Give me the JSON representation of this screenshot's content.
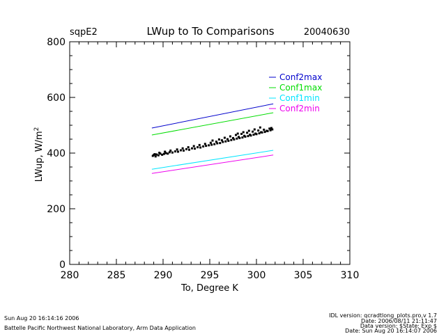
{
  "header": {
    "site": "sqpE2",
    "title": "LWup to To Comparisons",
    "date": "20040630"
  },
  "footer": {
    "left_line1": "Sun Aug 20 16:14:16 2006",
    "left_line2": "Battelle Pacific Northwest National Laboratory, Arm Data Application",
    "right_line1": "IDL version: qcradtlong_plots.pro,v 1.7",
    "right_line2": "Date: 2006/08/11 21:11:47",
    "right_line3": "Data version: $State: Exp $",
    "right_line4": "Date: Sun Aug 20 16:14:07 2006"
  },
  "colors": {
    "Conf2max": "#0000cc",
    "Conf1max": "#00dd00",
    "Conf1min": "#00e5ff",
    "Conf2min": "#ee00ee",
    "observed": "#000000"
  },
  "chart_data": {
    "type": "scatter",
    "xlabel": "To, Degree K",
    "ylabel": "LWup, W/m",
    "ylabel_sup": "2",
    "xlim": [
      280,
      310
    ],
    "ylim": [
      0,
      800
    ],
    "x_ticks": [
      280,
      285,
      290,
      295,
      300,
      305,
      310
    ],
    "y_ticks": [
      0,
      200,
      400,
      600,
      800
    ],
    "legend_position": "top-right",
    "series": [
      {
        "name": "Conf2max",
        "x": [
          288.8,
          301.8
        ],
        "y": [
          490,
          577
        ]
      },
      {
        "name": "Conf1max",
        "x": [
          288.8,
          301.8
        ],
        "y": [
          465,
          545
        ]
      },
      {
        "name": "Conf1min",
        "x": [
          288.8,
          301.8
        ],
        "y": [
          342,
          410
        ]
      },
      {
        "name": "Conf2min",
        "x": [
          288.8,
          301.8
        ],
        "y": [
          327,
          393
        ]
      }
    ],
    "scatter": {
      "x": [
        288.9,
        289.0,
        289.2,
        289.3,
        289.5,
        289.7,
        289.9,
        290.1,
        290.3,
        290.5,
        290.7,
        291.0,
        291.3,
        291.6,
        291.9,
        292.2,
        292.5,
        292.8,
        293.1,
        293.4,
        293.7,
        294.0,
        294.3,
        294.6,
        294.9,
        295.2,
        295.5,
        295.8,
        296.1,
        296.4,
        296.7,
        297.0,
        297.3,
        297.6,
        297.9,
        298.2,
        298.5,
        298.8,
        299.1,
        299.4,
        299.7,
        300.0,
        300.3,
        300.6,
        300.9,
        301.2,
        301.5,
        301.7,
        289.1,
        289.6,
        290.2,
        290.8,
        291.5,
        292.1,
        292.7,
        293.3,
        293.9,
        294.5,
        295.1,
        295.7,
        296.3,
        296.9,
        297.5,
        298.1,
        298.7,
        299.3,
        299.9,
        300.5,
        301.1,
        301.6,
        295.3,
        296.0,
        296.6,
        297.2,
        297.8,
        298.4,
        299.0,
        299.6,
        300.2,
        300.8,
        301.4,
        298.0,
        298.6,
        299.2,
        299.8,
        300.4
      ],
      "y": [
        390,
        393,
        388,
        395,
        392,
        398,
        394,
        397,
        400,
        398,
        403,
        402,
        406,
        405,
        410,
        409,
        414,
        412,
        417,
        416,
        421,
        420,
        424,
        426,
        428,
        430,
        432,
        435,
        436,
        440,
        442,
        444,
        447,
        449,
        452,
        454,
        456,
        459,
        461,
        463,
        466,
        468,
        471,
        474,
        476,
        479,
        482,
        485,
        396,
        401,
        405,
        409,
        413,
        417,
        421,
        425,
        429,
        433,
        437,
        441,
        446,
        450,
        454,
        458,
        462,
        466,
        470,
        475,
        480,
        490,
        445,
        449,
        455,
        460,
        465,
        469,
        473,
        477,
        481,
        484,
        488,
        470,
        475,
        480,
        485,
        492
      ]
    }
  }
}
